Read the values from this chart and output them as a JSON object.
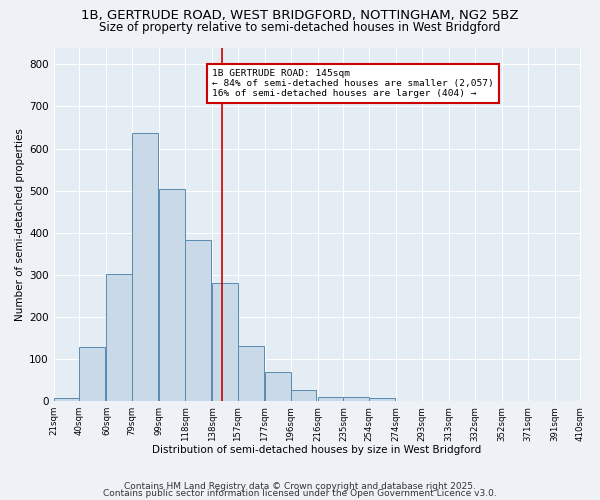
{
  "title1": "1B, GERTRUDE ROAD, WEST BRIDGFORD, NOTTINGHAM, NG2 5BZ",
  "title2": "Size of property relative to semi-detached houses in West Bridgford",
  "xlabel": "Distribution of semi-detached houses by size in West Bridgford",
  "ylabel": "Number of semi-detached properties",
  "bar_left_edges": [
    21,
    40,
    60,
    79,
    99,
    118,
    138,
    157,
    177,
    196,
    216,
    235,
    254,
    274,
    293,
    313,
    332,
    352,
    371,
    391
  ],
  "bar_heights": [
    8,
    128,
    303,
    637,
    503,
    383,
    280,
    131,
    70,
    27,
    10,
    10,
    7,
    0,
    0,
    0,
    0,
    0,
    0,
    0
  ],
  "bin_width": 19,
  "bar_color": "#c9d9e8",
  "bar_edge_color": "#5a8ab0",
  "vline_x": 145,
  "vline_color": "#cc0000",
  "annotation_text": "1B GERTRUDE ROAD: 145sqm\n← 84% of semi-detached houses are smaller (2,057)\n16% of semi-detached houses are larger (404) →",
  "annotation_box_color": "#ffffff",
  "annotation_box_edge": "#cc0000",
  "xlim_left": 21,
  "xlim_right": 410,
  "ylim_top": 840,
  "yticks": [
    0,
    100,
    200,
    300,
    400,
    500,
    600,
    700,
    800
  ],
  "xtick_labels": [
    "21sqm",
    "40sqm",
    "60sqm",
    "79sqm",
    "99sqm",
    "118sqm",
    "138sqm",
    "157sqm",
    "177sqm",
    "196sqm",
    "216sqm",
    "235sqm",
    "254sqm",
    "274sqm",
    "293sqm",
    "313sqm",
    "332sqm",
    "352sqm",
    "371sqm",
    "391sqm",
    "410sqm"
  ],
  "xtick_positions": [
    21,
    40,
    60,
    79,
    99,
    118,
    138,
    157,
    177,
    196,
    216,
    235,
    254,
    274,
    293,
    313,
    332,
    352,
    371,
    391,
    410
  ],
  "footer1": "Contains HM Land Registry data © Crown copyright and database right 2025.",
  "footer2": "Contains public sector information licensed under the Open Government Licence v3.0.",
  "bg_color": "#eef2f7",
  "plot_bg_color": "#e4ecf4",
  "grid_color": "#ffffff",
  "title1_fontsize": 9.5,
  "title2_fontsize": 8.5,
  "footer_fontsize": 6.5
}
